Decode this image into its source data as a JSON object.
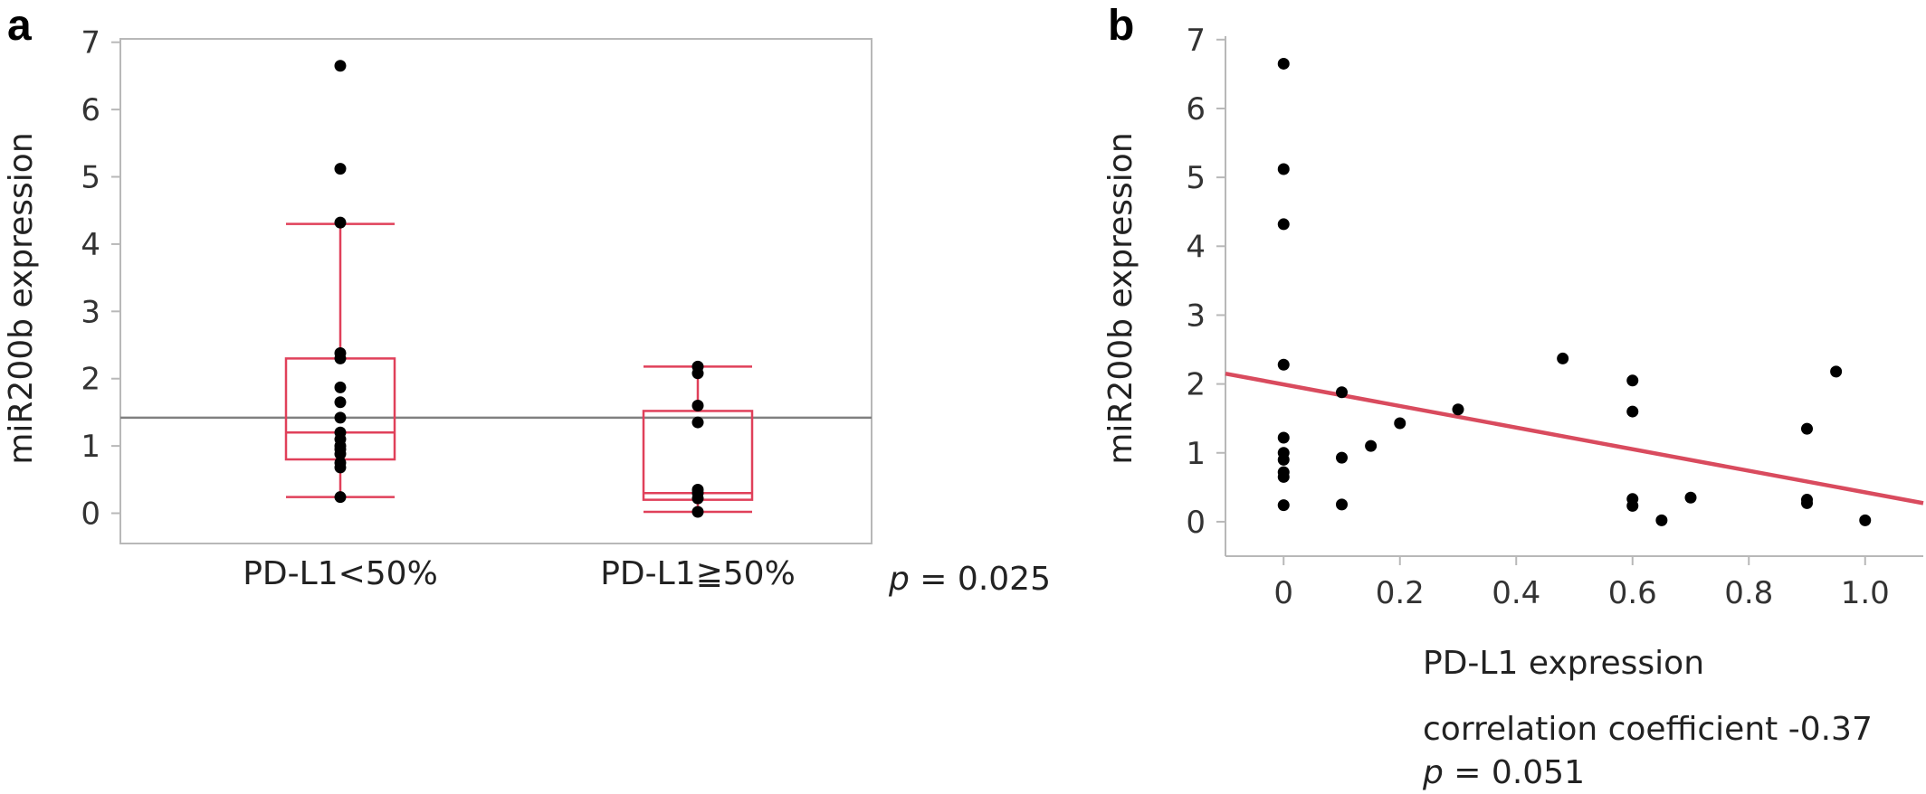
{
  "chart_data": [
    {
      "type": "box",
      "panel_label": "a",
      "ylabel": "miR200b expression",
      "ylim": [
        -0.45,
        7.05
      ],
      "yticks": [
        "0",
        "1",
        "2",
        "3",
        "4",
        "5",
        "6",
        "7"
      ],
      "categories": [
        "PD-L1<50%",
        "PD-L1≧50%"
      ],
      "reference_line": 1.42,
      "groups": [
        {
          "name": "PD-L1<50%",
          "whisker_low": 0.24,
          "q1": 0.8,
          "median": 1.2,
          "q3": 2.3,
          "whisker_high": 4.3,
          "points": [
            6.65,
            5.12,
            4.32,
            2.38,
            2.3,
            1.87,
            1.65,
            1.42,
            1.2,
            1.1,
            1.0,
            0.95,
            0.88,
            0.75,
            0.68,
            0.24
          ]
        },
        {
          "name": "PD-L1≧50%",
          "whisker_low": 0.02,
          "q1": 0.2,
          "median": 0.3,
          "q3": 1.52,
          "whisker_high": 2.18,
          "points": [
            2.18,
            2.08,
            1.6,
            1.35,
            0.35,
            0.3,
            0.22,
            0.02
          ]
        }
      ],
      "p_label": "p",
      "p_value": " = 0.025"
    },
    {
      "type": "scatter",
      "panel_label": "b",
      "ylabel": "miR200b expression",
      "xlabel": "PD-L1 expression",
      "xlim": [
        -0.1,
        1.1
      ],
      "ylim": [
        -0.5,
        7.05
      ],
      "xticks": [
        "0",
        "0.2",
        "0.4",
        "0.6",
        "0.8",
        "1.0"
      ],
      "yticks": [
        "0",
        "1",
        "2",
        "3",
        "4",
        "5",
        "6",
        "7"
      ],
      "points": [
        {
          "x": 0,
          "y": 6.65
        },
        {
          "x": 0,
          "y": 5.12
        },
        {
          "x": 0,
          "y": 4.32
        },
        {
          "x": 0,
          "y": 2.28
        },
        {
          "x": 0,
          "y": 1.22
        },
        {
          "x": 0,
          "y": 1.0
        },
        {
          "x": 0,
          "y": 0.9
        },
        {
          "x": 0,
          "y": 0.72
        },
        {
          "x": 0,
          "y": 0.65
        },
        {
          "x": 0,
          "y": 0.24
        },
        {
          "x": 0.1,
          "y": 1.88
        },
        {
          "x": 0.1,
          "y": 0.93
        },
        {
          "x": 0.1,
          "y": 0.25
        },
        {
          "x": 0.15,
          "y": 1.1
        },
        {
          "x": 0.2,
          "y": 1.43
        },
        {
          "x": 0.3,
          "y": 1.63
        },
        {
          "x": 0.48,
          "y": 2.37
        },
        {
          "x": 0.6,
          "y": 2.05
        },
        {
          "x": 0.6,
          "y": 1.6
        },
        {
          "x": 0.6,
          "y": 0.33
        },
        {
          "x": 0.6,
          "y": 0.23
        },
        {
          "x": 0.65,
          "y": 0.02
        },
        {
          "x": 0.7,
          "y": 0.35
        },
        {
          "x": 0.9,
          "y": 1.35
        },
        {
          "x": 0.9,
          "y": 0.32
        },
        {
          "x": 0.9,
          "y": 0.27
        },
        {
          "x": 0.95,
          "y": 2.18
        },
        {
          "x": 1.0,
          "y": 0.02
        }
      ],
      "fit_line": {
        "x0": -0.1,
        "y0": 2.15,
        "x1": 1.1,
        "y1": 0.27
      },
      "annotation": "correlation coefficient -0.37",
      "p_label": "p",
      "p_value": " = 0.051"
    }
  ],
  "colors": {
    "box": "#e0405a",
    "fit": "#d94b5e",
    "point": "#000000",
    "frame": "#b8b8b8",
    "reference": "#808080"
  }
}
